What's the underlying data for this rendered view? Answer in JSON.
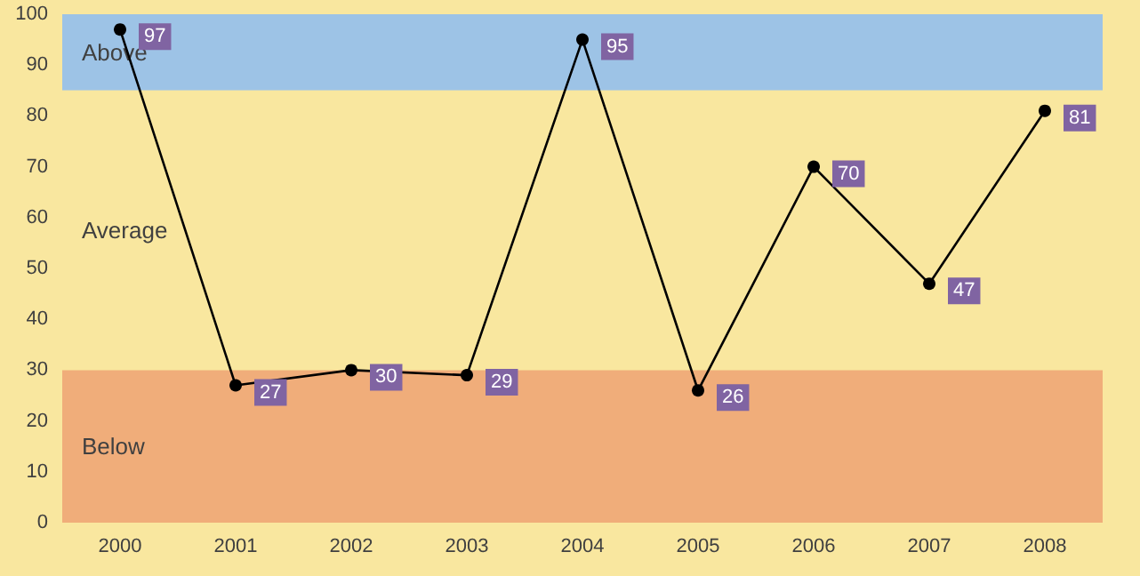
{
  "chart_data": {
    "type": "line",
    "categories": [
      "2000",
      "2001",
      "2002",
      "2003",
      "2004",
      "2005",
      "2006",
      "2007",
      "2008"
    ],
    "series": [
      {
        "color": "#000000",
        "values": [
          97,
          27,
          30,
          29,
          95,
          26,
          70,
          47,
          81
        ]
      }
    ],
    "ylim": [
      0,
      100
    ],
    "yticks": [
      0,
      10,
      20,
      30,
      40,
      50,
      60,
      70,
      80,
      90,
      100
    ],
    "bands": [
      {
        "axis": "y",
        "from": 85,
        "to": 100,
        "label": "Above",
        "color": "#9dc3e6"
      },
      {
        "axis": "y",
        "from": 30,
        "to": 85,
        "label": "Average",
        "color": "#f9e79f"
      },
      {
        "axis": "y",
        "from": 0,
        "to": 30,
        "label": "Below",
        "color": "#f0ad7a"
      }
    ],
    "data_labels": true,
    "marker": "circle",
    "line_style": "solid",
    "grid": false
  }
}
